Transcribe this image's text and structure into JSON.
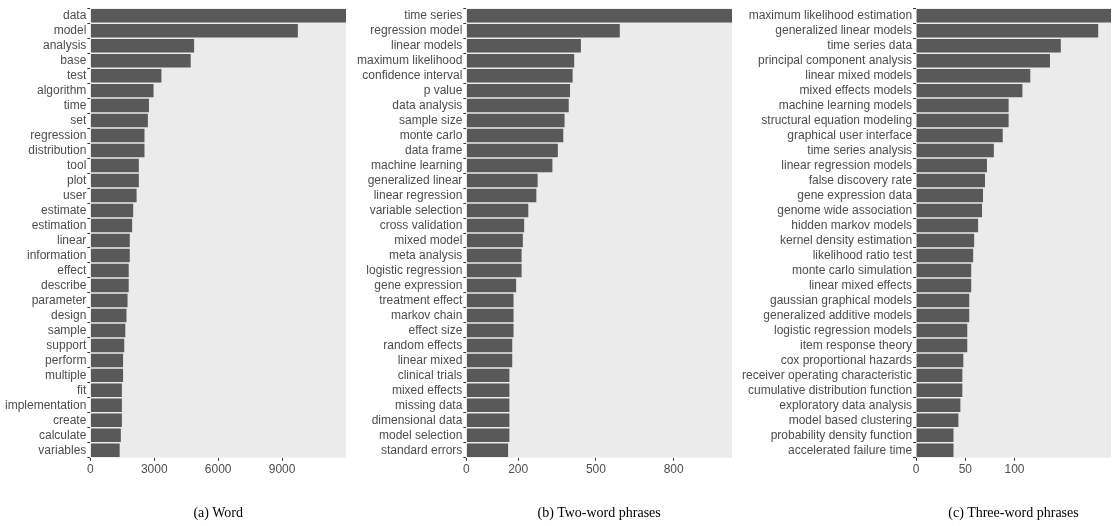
{
  "chart_data": [
    {
      "type": "bar",
      "orientation": "horizontal",
      "xlabel": "(a) Word",
      "categories": [
        "data",
        "model",
        "analysis",
        "base",
        "test",
        "algorithm",
        "time",
        "set",
        "regression",
        "distribution",
        "tool",
        "plot",
        "user",
        "estimate",
        "estimation",
        "linear",
        "information",
        "effect",
        "describe",
        "parameter",
        "design",
        "sample",
        "support",
        "perform",
        "multiple",
        "fit",
        "implementation",
        "create",
        "calculate",
        "variables"
      ],
      "values": [
        12000,
        9740,
        4870,
        4710,
        3335,
        2965,
        2750,
        2700,
        2540,
        2540,
        2275,
        2275,
        2170,
        2010,
        1960,
        1850,
        1850,
        1800,
        1800,
        1745,
        1695,
        1640,
        1590,
        1535,
        1535,
        1480,
        1480,
        1480,
        1430,
        1375
      ],
      "color": "#595959",
      "xlim": [
        0,
        12000
      ],
      "xticks": [
        0,
        3000,
        6000,
        9000
      ],
      "legend": false
    },
    {
      "type": "bar",
      "orientation": "horizontal",
      "xlabel": "(b) Two-word phrases",
      "categories": [
        "time series",
        "regression model",
        "linear models",
        "maximum likelihood",
        "confidence interval",
        "p value",
        "data analysis",
        "sample size",
        "monte carlo",
        "data frame",
        "machine learning",
        "generalized linear",
        "linear regression",
        "variable selection",
        "cross validation",
        "mixed model",
        "meta analysis",
        "logistic regression",
        "gene expression",
        "treatment effect",
        "markov chain",
        "effect size",
        "random effects",
        "linear mixed",
        "clinical trials",
        "mixed effects",
        "missing data",
        "dimensional data",
        "model selection",
        "standard errors"
      ],
      "values": [
        1025,
        592,
        442,
        416,
        410,
        400,
        395,
        379,
        374,
        353,
        332,
        275,
        270,
        239,
        223,
        218,
        213,
        213,
        192,
        182,
        182,
        182,
        177,
        177,
        166,
        166,
        166,
        166,
        166,
        161
      ],
      "color": "#595959",
      "xlim": [
        0,
        1025
      ],
      "xticks": [
        0,
        200,
        500,
        800
      ],
      "legend": false
    },
    {
      "type": "bar",
      "orientation": "horizontal",
      "xlabel": "(c) Three-word phrases",
      "categories": [
        "maximum likelihood estimation",
        "generalized linear models",
        "time series data",
        "principal component analysis",
        "linear mixed models",
        "mixed effects models",
        "machine learning models",
        "structural equation modeling",
        "graphical user interface",
        "time series analysis",
        "linear regression models",
        "false discovery rate",
        "gene expression data",
        "genome wide association",
        "hidden markov models",
        "kernel density estimation",
        "likelihood ratio test",
        "monte carlo simulation",
        "linear mixed effects",
        "gaussian graphical models",
        "generalized additive models",
        "logistic regression models",
        "item response theory",
        "cox proportional hazards",
        "receiver operating characteristic",
        "cumulative distribution function",
        "exploratory data analysis",
        "model based clustering",
        "probability density function",
        "accelerated failure time"
      ],
      "values": [
        198,
        185,
        147,
        136,
        116,
        108,
        94,
        94,
        88,
        79,
        72,
        70,
        68,
        67,
        63,
        59,
        58,
        56,
        56,
        54,
        54,
        52,
        52,
        48,
        47,
        47,
        45,
        43,
        38,
        38
      ],
      "color": "#595959",
      "xlim": [
        0,
        198
      ],
      "xticks": [
        0,
        50,
        100
      ],
      "legend": false
    }
  ]
}
